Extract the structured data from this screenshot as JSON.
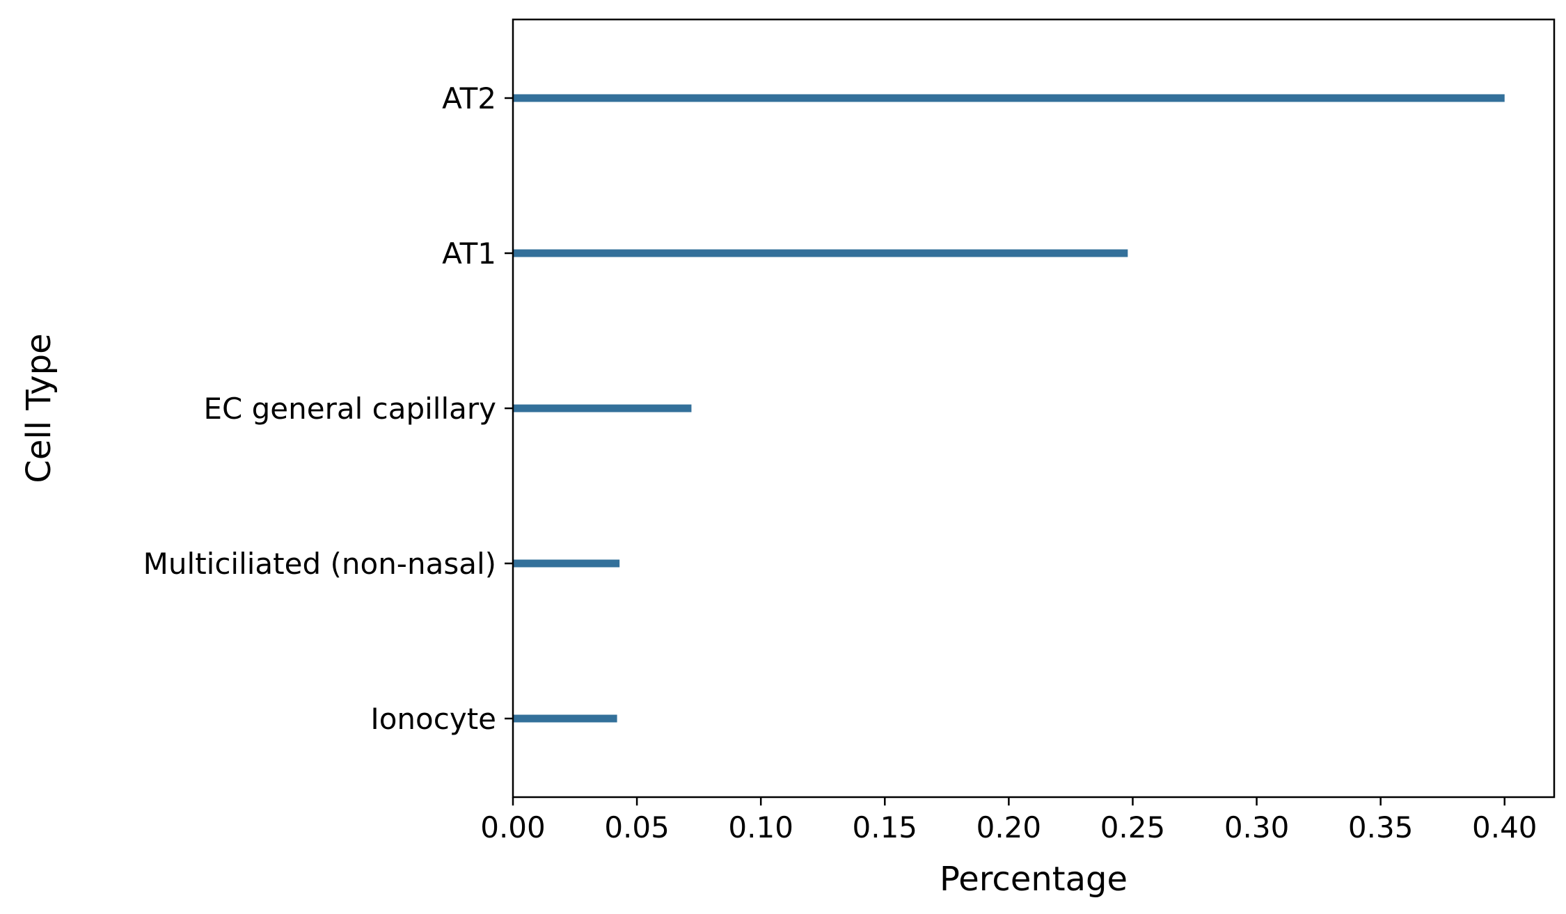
{
  "chart_data": {
    "type": "bar",
    "orientation": "horizontal",
    "title": "",
    "xlabel": "Percentage",
    "ylabel": "Cell Type",
    "categories": [
      "AT2",
      "AT1",
      "EC general capillary",
      "Multiciliated (non-nasal)",
      "Ionocyte"
    ],
    "values": [
      0.4,
      0.248,
      0.072,
      0.043,
      0.042
    ],
    "xlim": [
      0,
      0.42
    ],
    "xticks": [
      "0.00",
      "0.05",
      "0.10",
      "0.15",
      "0.20",
      "0.25",
      "0.30",
      "0.35",
      "0.40"
    ],
    "bar_color": "#33709a",
    "grid": false,
    "legend": "none"
  }
}
